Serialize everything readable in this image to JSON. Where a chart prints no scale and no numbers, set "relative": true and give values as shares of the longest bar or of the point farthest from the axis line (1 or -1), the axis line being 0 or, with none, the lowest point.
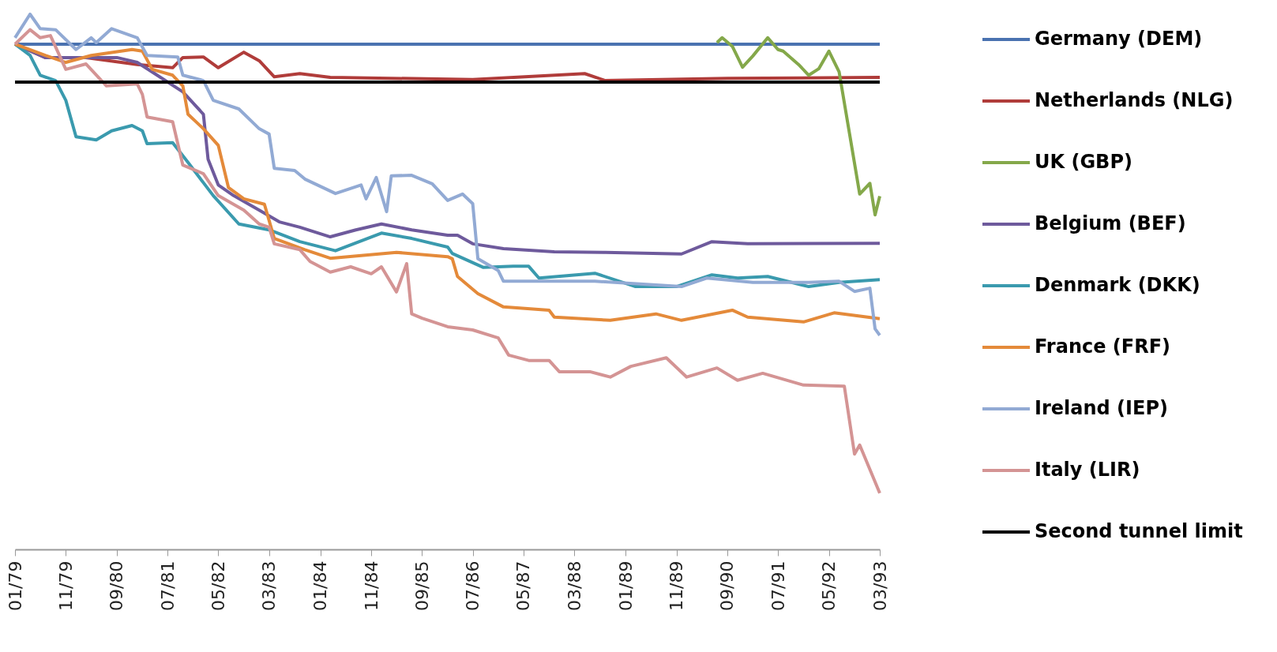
{
  "chart_data": {
    "type": "line",
    "relative": true,
    "legend": "right",
    "xlim": [
      "1979-01",
      "1993-03"
    ],
    "xticks": [
      {
        "value": "1979-01",
        "label": "01/79"
      },
      {
        "value": "1979-11",
        "label": "11/79"
      },
      {
        "value": "1980-09",
        "label": "09/80"
      },
      {
        "value": "1981-07",
        "label": "07/81"
      },
      {
        "value": "1982-05",
        "label": "05/82"
      },
      {
        "value": "1983-03",
        "label": "03/83"
      },
      {
        "value": "1984-01",
        "label": "01/84"
      },
      {
        "value": "1984-11",
        "label": "11/84"
      },
      {
        "value": "1985-09",
        "label": "09/85"
      },
      {
        "value": "1986-07",
        "label": "07/86"
      },
      {
        "value": "1987-05",
        "label": "05/87"
      },
      {
        "value": "1988-03",
        "label": "03/88"
      },
      {
        "value": "1989-01",
        "label": "01/89"
      },
      {
        "value": "1989-11",
        "label": "11/89"
      },
      {
        "value": "1990-09",
        "label": "09/90"
      },
      {
        "value": "1991-07",
        "label": "07/91"
      },
      {
        "value": "1992-05",
        "label": "05/92"
      },
      {
        "value": "1993-03",
        "label": "03/93"
      }
    ],
    "series": [
      {
        "name": "Germany (DEM)",
        "color": "#4a72b0",
        "x": [
          "1979-01",
          "1993-03"
        ],
        "values": [
          0.944,
          0.944
        ]
      },
      {
        "name": "Netherlands (NLG)",
        "color": "#b03c3a",
        "x": [
          "1979-01",
          "1979-07",
          "1980-03",
          "1981-01",
          "1981-08",
          "1981-10",
          "1982-02",
          "1982-05",
          "1982-10",
          "1983-01",
          "1983-04",
          "1983-09",
          "1984-03",
          "1986-07",
          "1988-05",
          "1988-09",
          "1990-09",
          "1993-03"
        ],
        "values": [
          0.944,
          0.919,
          0.919,
          0.906,
          0.9,
          0.919,
          0.92,
          0.9,
          0.929,
          0.913,
          0.883,
          0.889,
          0.882,
          0.878,
          0.889,
          0.876,
          0.88,
          0.882
        ]
      },
      {
        "name": "UK (GBP)",
        "color": "#84a84a",
        "x": [
          "1990-07",
          "1990-08",
          "1990-10",
          "1990-12",
          "1991-02",
          "1991-05",
          "1991-07",
          "1991-08",
          "1991-11",
          "1992-01",
          "1992-03",
          "1992-05",
          "1992-07",
          "1992-09",
          "1992-11",
          "1993-01",
          "1993-02",
          "1993-03"
        ],
        "values": [
          0.947,
          0.956,
          0.94,
          0.901,
          0.922,
          0.956,
          0.934,
          0.931,
          0.906,
          0.886,
          0.898,
          0.931,
          0.892,
          0.777,
          0.664,
          0.684,
          0.625,
          0.66
        ]
      },
      {
        "name": "Belgium (BEF)",
        "color": "#6e5a9c",
        "x": [
          "1979-01",
          "1979-07",
          "1980-09",
          "1981-01",
          "1981-04",
          "1981-10",
          "1982-02",
          "1982-03",
          "1982-05",
          "1982-08",
          "1983-01",
          "1983-05",
          "1983-09",
          "1984-03",
          "1984-08",
          "1985-01",
          "1985-07",
          "1986-02",
          "1986-04",
          "1986-07",
          "1987-01",
          "1987-11",
          "1988-09",
          "1989-12",
          "1990-06",
          "1991-01",
          "1993-03"
        ],
        "values": [
          0.944,
          0.919,
          0.919,
          0.91,
          0.892,
          0.855,
          0.813,
          0.729,
          0.681,
          0.661,
          0.634,
          0.612,
          0.602,
          0.584,
          0.597,
          0.608,
          0.597,
          0.587,
          0.587,
          0.571,
          0.562,
          0.556,
          0.555,
          0.552,
          0.575,
          0.571,
          0.572
        ]
      },
      {
        "name": "Denmark (DKK)",
        "color": "#3a9aae",
        "x": [
          "1979-01",
          "1979-04",
          "1979-06",
          "1979-09",
          "1979-11",
          "1980-01",
          "1980-05",
          "1980-08",
          "1980-12",
          "1981-02",
          "1981-03",
          "1981-08",
          "1981-11",
          "1982-04",
          "1982-09",
          "1983-03",
          "1983-09",
          "1984-04",
          "1985-01",
          "1985-07",
          "1986-02",
          "1986-03",
          "1986-09",
          "1987-03",
          "1987-06",
          "1987-08",
          "1988-07",
          "1989-03",
          "1989-11",
          "1990-06",
          "1990-11",
          "1991-05",
          "1992-01",
          "1992-07",
          "1993-03"
        ],
        "values": [
          0.944,
          0.923,
          0.886,
          0.876,
          0.839,
          0.771,
          0.765,
          0.782,
          0.792,
          0.782,
          0.758,
          0.76,
          0.723,
          0.661,
          0.608,
          0.597,
          0.575,
          0.558,
          0.591,
          0.581,
          0.565,
          0.553,
          0.527,
          0.529,
          0.529,
          0.507,
          0.516,
          0.491,
          0.491,
          0.513,
          0.507,
          0.51,
          0.491,
          0.499,
          0.504
        ]
      },
      {
        "name": "France (FRF)",
        "color": "#e48a3a",
        "x": [
          "1979-01",
          "1979-07",
          "1979-11",
          "1980-04",
          "1980-12",
          "1981-02",
          "1981-04",
          "1981-08",
          "1981-10",
          "1981-11",
          "1982-02",
          "1982-05",
          "1982-07",
          "1982-10",
          "1983-02",
          "1983-04",
          "1983-10",
          "1984-03",
          "1985-04",
          "1986-02",
          "1986-03",
          "1986-04",
          "1986-08",
          "1987-01",
          "1987-10",
          "1987-11",
          "1988-10",
          "1989-07",
          "1989-12",
          "1990-10",
          "1991-01",
          "1991-12",
          "1992-06",
          "1993-03"
        ],
        "values": [
          0.944,
          0.923,
          0.91,
          0.923,
          0.934,
          0.931,
          0.897,
          0.886,
          0.866,
          0.813,
          0.786,
          0.755,
          0.676,
          0.655,
          0.645,
          0.581,
          0.56,
          0.544,
          0.555,
          0.547,
          0.543,
          0.51,
          0.478,
          0.453,
          0.447,
          0.434,
          0.428,
          0.44,
          0.428,
          0.447,
          0.434,
          0.425,
          0.442,
          0.431
        ]
      },
      {
        "name": "Ireland (IEP)",
        "color": "#92aad4",
        "x": [
          "1979-01",
          "1979-04",
          "1979-06",
          "1979-09",
          "1980-01",
          "1980-04",
          "1980-05",
          "1980-08",
          "1981-01",
          "1981-03",
          "1981-09",
          "1981-10",
          "1982-02",
          "1982-04",
          "1982-09",
          "1983-01",
          "1983-03",
          "1983-04",
          "1983-08",
          "1983-10",
          "1984-04",
          "1984-09",
          "1984-10",
          "1984-12",
          "1985-02",
          "1985-03",
          "1985-07",
          "1985-11",
          "1986-02",
          "1986-05",
          "1986-07",
          "1986-08",
          "1986-12",
          "1987-01",
          "1988-07",
          "1989-12",
          "1990-05",
          "1991-02",
          "1992-01",
          "1992-07",
          "1992-10",
          "1993-01",
          "1993-02",
          "1993-03"
        ],
        "values": [
          0.956,
          1.0,
          0.973,
          0.971,
          0.934,
          0.956,
          0.947,
          0.973,
          0.956,
          0.923,
          0.92,
          0.886,
          0.876,
          0.839,
          0.823,
          0.786,
          0.776,
          0.712,
          0.708,
          0.692,
          0.665,
          0.681,
          0.655,
          0.695,
          0.631,
          0.698,
          0.699,
          0.683,
          0.652,
          0.664,
          0.646,
          0.543,
          0.521,
          0.501,
          0.501,
          0.491,
          0.507,
          0.499,
          0.499,
          0.501,
          0.482,
          0.488,
          0.412,
          0.4
        ]
      },
      {
        "name": "Italy (LIR)",
        "color": "#d49494",
        "x": [
          "1979-01",
          "1979-04",
          "1979-06",
          "1979-08",
          "1979-11",
          "1980-03",
          "1980-07",
          "1981-01",
          "1981-02",
          "1981-03",
          "1981-08",
          "1981-10",
          "1982-02",
          "1982-05",
          "1982-10",
          "1983-01",
          "1983-03",
          "1983-04",
          "1983-09",
          "1983-11",
          "1984-03",
          "1984-07",
          "1984-11",
          "1985-01",
          "1985-04",
          "1985-06",
          "1985-07",
          "1985-09",
          "1986-02",
          "1986-07",
          "1986-12",
          "1987-02",
          "1987-06",
          "1987-10",
          "1987-12",
          "1988-06",
          "1988-10",
          "1989-02",
          "1989-09",
          "1990-01",
          "1990-07",
          "1990-11",
          "1991-04",
          "1991-12",
          "1992-08",
          "1992-10",
          "1992-11",
          "1993-03"
        ],
        "values": [
          0.944,
          0.971,
          0.956,
          0.96,
          0.897,
          0.907,
          0.866,
          0.87,
          0.85,
          0.808,
          0.799,
          0.718,
          0.702,
          0.661,
          0.634,
          0.608,
          0.602,
          0.571,
          0.56,
          0.538,
          0.518,
          0.528,
          0.515,
          0.528,
          0.481,
          0.534,
          0.44,
          0.432,
          0.416,
          0.41,
          0.395,
          0.363,
          0.353,
          0.353,
          0.332,
          0.332,
          0.322,
          0.342,
          0.358,
          0.322,
          0.339,
          0.316,
          0.329,
          0.307,
          0.305,
          0.178,
          0.195,
          0.105
        ]
      },
      {
        "name": "Second tunnel limit",
        "color": "#000000",
        "x": [
          "1979-01",
          "1993-03"
        ],
        "values": [
          0.873,
          0.873
        ]
      }
    ]
  }
}
